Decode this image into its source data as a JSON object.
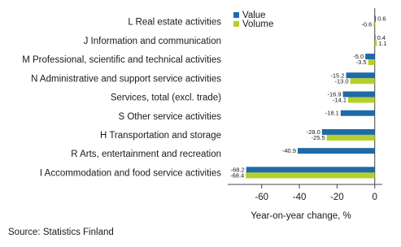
{
  "chart_data": {
    "type": "hbar",
    "categories": [
      "L Real estate activities",
      "J Information and communication",
      "M Professional, scientific and technical activities",
      "N Administrative and support service activities",
      "Services, total (excl. trade)",
      "S Other service activities",
      "H Transportation and storage",
      "R Arts, entertainment and recreation",
      "I Accommodation and food service activities"
    ],
    "series": [
      {
        "name": "Value",
        "color": "#1f6aa8",
        "values": [
          0.6,
          0.4,
          -5.0,
          -15.2,
          -16.9,
          -18.1,
          -28.0,
          -40.9,
          -68.2
        ],
        "value_labels": [
          "0.6",
          "0.4",
          "-5.0",
          "-15.2",
          "-16.9",
          "-18.1",
          "-28.0",
          "-40.9",
          "-68.2"
        ]
      },
      {
        "name": "Volume",
        "color": "#b5cf2b",
        "values": [
          -0.6,
          1.1,
          -3.5,
          -13.0,
          -14.1,
          null,
          -25.5,
          null,
          -68.4
        ],
        "value_labels": [
          "-0.6",
          "1.1",
          "-3.5",
          "-13.0",
          "-14.1",
          null,
          "-25.5",
          null,
          "-68.4"
        ]
      }
    ],
    "xlabel": "Year-on-year change, %",
    "xlim": [
      -78,
      4
    ],
    "xticks": [
      -60,
      -40,
      -20,
      0
    ],
    "legend": "top-left",
    "source": "Source: Statistics Finland"
  }
}
